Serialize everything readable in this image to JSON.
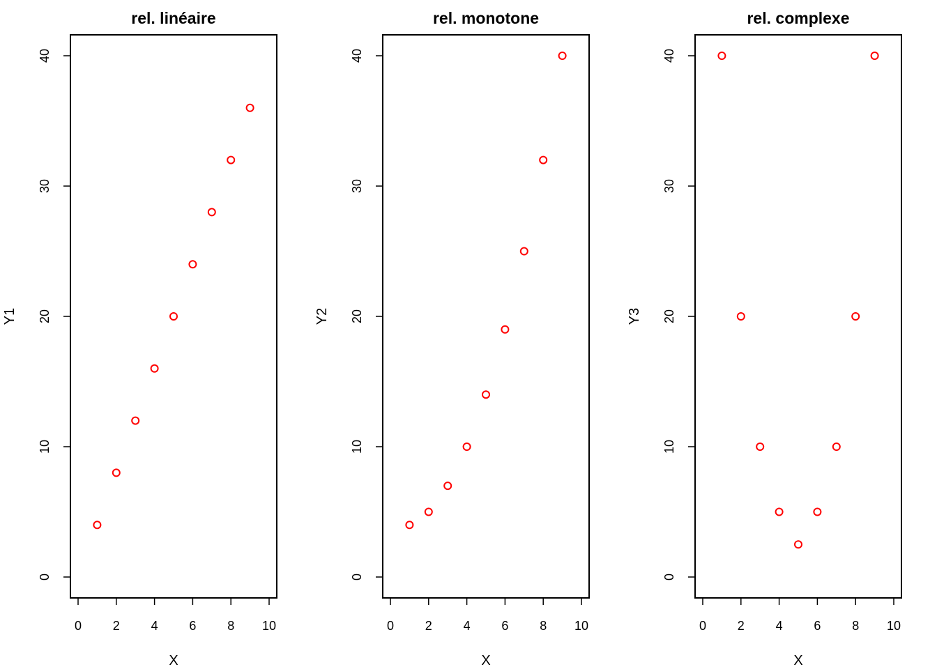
{
  "chart_data": [
    {
      "type": "scatter",
      "title": "rel. linéaire",
      "xlabel": "X",
      "ylabel": "Y1",
      "xlim": [
        0,
        10
      ],
      "ylim": [
        0,
        40
      ],
      "xticks": [
        "0",
        "2",
        "4",
        "6",
        "8",
        "10"
      ],
      "yticks": [
        "0",
        "10",
        "20",
        "30",
        "40"
      ],
      "grid": false,
      "point_color": "#ff0000",
      "x": [
        1,
        2,
        3,
        4,
        5,
        6,
        7,
        8,
        9
      ],
      "y": [
        4,
        8,
        12,
        16,
        20,
        24,
        28,
        32,
        36
      ]
    },
    {
      "type": "scatter",
      "title": "rel. monotone",
      "xlabel": "X",
      "ylabel": "Y2",
      "xlim": [
        0,
        10
      ],
      "ylim": [
        0,
        40
      ],
      "xticks": [
        "0",
        "2",
        "4",
        "6",
        "8",
        "10"
      ],
      "yticks": [
        "0",
        "10",
        "20",
        "30",
        "40"
      ],
      "grid": false,
      "point_color": "#ff0000",
      "x": [
        1,
        2,
        3,
        4,
        5,
        6,
        7,
        8,
        9
      ],
      "y": [
        4,
        5,
        7,
        10,
        14,
        19,
        25,
        32,
        40
      ]
    },
    {
      "type": "scatter",
      "title": "rel. complexe",
      "xlabel": "X",
      "ylabel": "Y3",
      "xlim": [
        0,
        10
      ],
      "ylim": [
        0,
        40
      ],
      "xticks": [
        "0",
        "2",
        "4",
        "6",
        "8",
        "10"
      ],
      "yticks": [
        "0",
        "10",
        "20",
        "30",
        "40"
      ],
      "grid": false,
      "point_color": "#ff0000",
      "x": [
        1,
        2,
        3,
        4,
        5,
        6,
        7,
        8,
        9
      ],
      "y": [
        40,
        20,
        10,
        5,
        2.5,
        5,
        10,
        20,
        40
      ]
    }
  ]
}
